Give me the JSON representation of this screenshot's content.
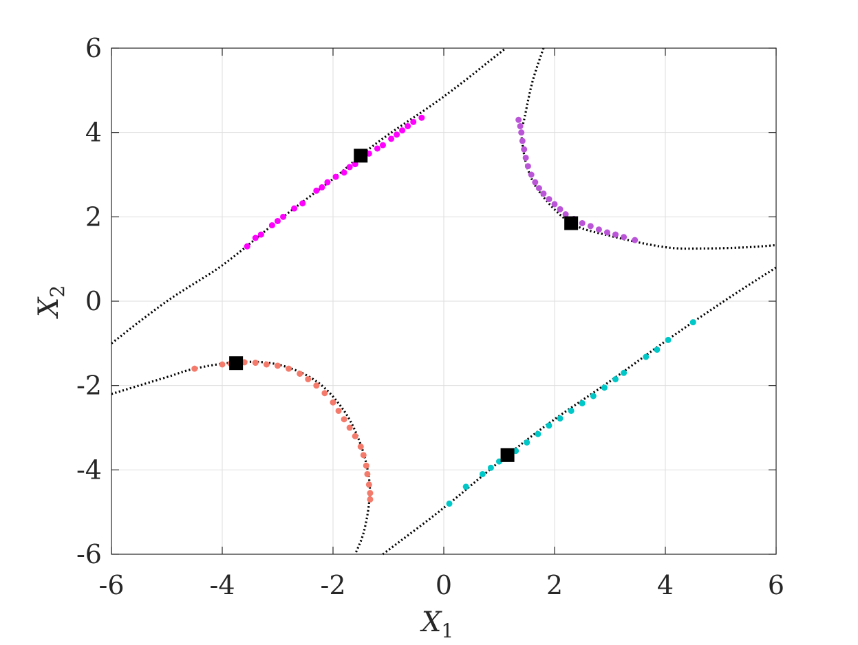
{
  "chart_data": {
    "type": "scatter",
    "title": "",
    "xlabel": "X",
    "xlabel_sub": "1",
    "ylabel": "X",
    "ylabel_sub": "2",
    "xlim": [
      -6,
      6
    ],
    "ylim": [
      -6,
      6
    ],
    "xticks": [
      -6,
      -4,
      -2,
      0,
      2,
      4,
      6
    ],
    "yticks": [
      -6,
      -4,
      -2,
      0,
      2,
      4,
      6
    ],
    "xtick_labels": [
      "-6",
      "-4",
      "-2",
      "0",
      "2",
      "4",
      "6"
    ],
    "ytick_labels": [
      "-6",
      "-4",
      "-2",
      "0",
      "2",
      "4",
      "6"
    ],
    "grid": true,
    "colors": {
      "magenta": "#ff00ff",
      "orchid": "#bb55d8",
      "salmon": "#f47b6b",
      "cyan": "#00c8c8",
      "curve": "#000000",
      "marker": "#000000"
    },
    "curves": [
      {
        "points": [
          [
            -6,
            -1.0
          ],
          [
            -5,
            -0.0
          ],
          [
            -4,
            0.85
          ],
          [
            -3,
            1.9
          ],
          [
            -2,
            2.9
          ],
          [
            -1.5,
            3.45
          ],
          [
            -1,
            3.95
          ],
          [
            0,
            4.85
          ],
          [
            1.1,
            5.98
          ]
        ]
      },
      {
        "points": [
          [
            1.8,
            6.0
          ],
          [
            1.6,
            5.2
          ],
          [
            1.45,
            4.3
          ],
          [
            1.4,
            4.0
          ],
          [
            1.5,
            3.2
          ],
          [
            1.75,
            2.55
          ],
          [
            2.3,
            1.85
          ],
          [
            3.0,
            1.55
          ],
          [
            4.0,
            1.28
          ],
          [
            4.7,
            1.25
          ],
          [
            5.5,
            1.28
          ],
          [
            6.0,
            1.33
          ]
        ]
      },
      {
        "points": [
          [
            -6,
            -2.2
          ],
          [
            -5.0,
            -1.8
          ],
          [
            -4.5,
            -1.6
          ],
          [
            -3.75,
            -1.45
          ],
          [
            -3.0,
            -1.5
          ],
          [
            -2.3,
            -1.9
          ],
          [
            -1.8,
            -2.6
          ],
          [
            -1.5,
            -3.4
          ],
          [
            -1.35,
            -4.2
          ],
          [
            -1.35,
            -4.8
          ],
          [
            -1.45,
            -5.5
          ],
          [
            -1.6,
            -6.0
          ]
        ]
      },
      {
        "points": [
          [
            -1.1,
            -6.0
          ],
          [
            0,
            -4.9
          ],
          [
            1.15,
            -3.65
          ],
          [
            2,
            -2.8
          ],
          [
            3,
            -1.9
          ],
          [
            4,
            -0.95
          ],
          [
            5,
            -0.05
          ],
          [
            6,
            0.8
          ]
        ]
      }
    ],
    "series": [
      {
        "color": "magenta",
        "points": [
          [
            -3.55,
            1.3
          ],
          [
            -3.4,
            1.5
          ],
          [
            -3.3,
            1.58
          ],
          [
            -3.1,
            1.8
          ],
          [
            -3.0,
            1.9
          ],
          [
            -2.9,
            2.0
          ],
          [
            -2.7,
            2.2
          ],
          [
            -2.55,
            2.32
          ],
          [
            -2.3,
            2.62
          ],
          [
            -2.2,
            2.7
          ],
          [
            -2.1,
            2.82
          ],
          [
            -1.95,
            2.95
          ],
          [
            -1.8,
            3.05
          ],
          [
            -1.7,
            3.18
          ],
          [
            -1.6,
            3.25
          ],
          [
            -1.45,
            3.4
          ],
          [
            -1.35,
            3.5
          ],
          [
            -1.2,
            3.62
          ],
          [
            -1.1,
            3.7
          ],
          [
            -0.95,
            3.85
          ],
          [
            -0.85,
            3.95
          ],
          [
            -0.75,
            4.05
          ],
          [
            -0.65,
            4.15
          ],
          [
            -0.55,
            4.25
          ],
          [
            -0.4,
            4.35
          ]
        ]
      },
      {
        "color": "orchid",
        "points": [
          [
            1.35,
            4.3
          ],
          [
            1.38,
            4.15
          ],
          [
            1.4,
            4.0
          ],
          [
            1.42,
            3.8
          ],
          [
            1.45,
            3.6
          ],
          [
            1.48,
            3.4
          ],
          [
            1.52,
            3.2
          ],
          [
            1.58,
            3.0
          ],
          [
            1.65,
            2.82
          ],
          [
            1.72,
            2.68
          ],
          [
            1.8,
            2.55
          ],
          [
            1.9,
            2.42
          ],
          [
            2.0,
            2.3
          ],
          [
            2.1,
            2.18
          ],
          [
            2.2,
            2.06
          ],
          [
            2.35,
            1.95
          ],
          [
            2.5,
            1.85
          ],
          [
            2.65,
            1.78
          ],
          [
            2.8,
            1.7
          ],
          [
            2.95,
            1.63
          ],
          [
            3.1,
            1.58
          ],
          [
            3.25,
            1.52
          ],
          [
            3.45,
            1.45
          ]
        ]
      },
      {
        "color": "salmon",
        "points": [
          [
            -4.5,
            -1.6
          ],
          [
            -4.0,
            -1.5
          ],
          [
            -3.85,
            -1.48
          ],
          [
            -3.6,
            -1.45
          ],
          [
            -3.4,
            -1.46
          ],
          [
            -3.2,
            -1.5
          ],
          [
            -3.0,
            -1.53
          ],
          [
            -2.8,
            -1.6
          ],
          [
            -2.6,
            -1.72
          ],
          [
            -2.45,
            -1.85
          ],
          [
            -2.3,
            -2.0
          ],
          [
            -2.15,
            -2.18
          ],
          [
            -2.0,
            -2.4
          ],
          [
            -1.9,
            -2.6
          ],
          [
            -1.8,
            -2.8
          ],
          [
            -1.7,
            -3.0
          ],
          [
            -1.6,
            -3.2
          ],
          [
            -1.5,
            -3.45
          ],
          [
            -1.45,
            -3.65
          ],
          [
            -1.4,
            -3.9
          ],
          [
            -1.38,
            -4.1
          ],
          [
            -1.35,
            -4.35
          ],
          [
            -1.33,
            -4.55
          ],
          [
            -1.33,
            -4.7
          ]
        ]
      },
      {
        "color": "cyan",
        "points": [
          [
            0.1,
            -4.8
          ],
          [
            0.4,
            -4.4
          ],
          [
            0.7,
            -4.1
          ],
          [
            0.85,
            -3.95
          ],
          [
            1.0,
            -3.8
          ],
          [
            1.3,
            -3.55
          ],
          [
            1.5,
            -3.35
          ],
          [
            1.7,
            -3.15
          ],
          [
            1.9,
            -2.95
          ],
          [
            2.1,
            -2.78
          ],
          [
            2.3,
            -2.6
          ],
          [
            2.5,
            -2.42
          ],
          [
            2.7,
            -2.25
          ],
          [
            2.9,
            -2.05
          ],
          [
            3.1,
            -1.85
          ],
          [
            3.25,
            -1.7
          ],
          [
            3.65,
            -1.32
          ],
          [
            3.85,
            -1.15
          ],
          [
            4.05,
            -0.92
          ],
          [
            4.5,
            -0.5
          ]
        ]
      }
    ],
    "markers": [
      [
        -1.5,
        3.45
      ],
      [
        2.3,
        1.85
      ],
      [
        -3.75,
        -1.47
      ],
      [
        1.15,
        -3.65
      ]
    ]
  }
}
